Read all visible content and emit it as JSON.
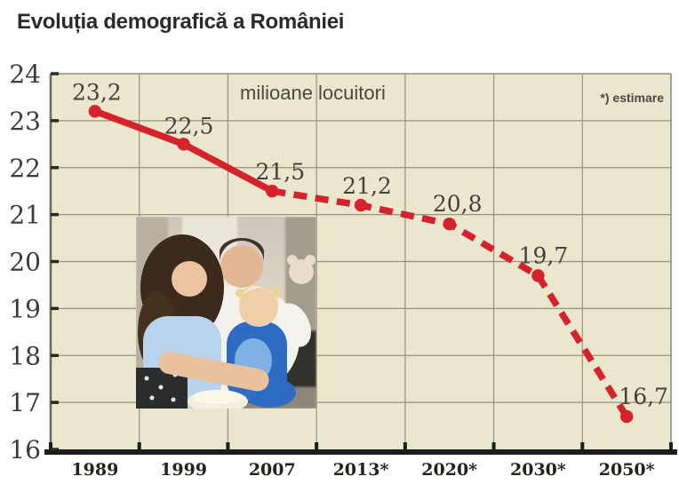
{
  "title": "Evoluția demografică a României",
  "chart_data": {
    "type": "line",
    "title": "Evoluția demografică a României",
    "unit_label": "milioane locuitori",
    "estimate_note": "*) estimare",
    "categories": [
      "1989",
      "1999",
      "2007",
      "2013*",
      "2020*",
      "2030*",
      "2050*"
    ],
    "values": [
      23.2,
      22.5,
      21.5,
      21.2,
      20.8,
      19.7,
      16.7
    ],
    "value_labels": [
      "23,2",
      "22,5",
      "21,5",
      "21,2",
      "20,8",
      "19,7",
      "16,7"
    ],
    "estimated_from_index": 2,
    "ylim": [
      16,
      24
    ],
    "yticks": [
      16,
      17,
      18,
      19,
      20,
      21,
      22,
      23,
      24
    ],
    "grid": true,
    "legend": "none",
    "colors": {
      "line": "#d5232c",
      "plot_bg": "#ebe6ce",
      "grid": "#96937f",
      "border": "#8f8d80",
      "axis": "#1c1c1c",
      "tick": "#2a2a24"
    }
  },
  "images": [
    {
      "name": "family-photo"
    }
  ]
}
